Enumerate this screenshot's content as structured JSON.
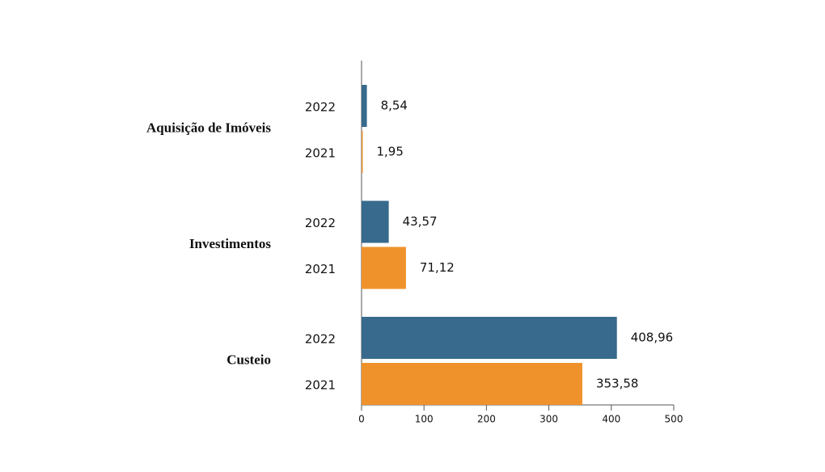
{
  "chart_data": {
    "type": "bar",
    "orientation": "horizontal",
    "categories": [
      "Aquisição de Imóveis",
      "Investimentos",
      "Custeio"
    ],
    "series": [
      {
        "name": "2022",
        "color": "#376a8c",
        "values": [
          8.54,
          43.57,
          408.96
        ],
        "value_labels": [
          "8,54",
          "43,57",
          "408,96"
        ]
      },
      {
        "name": "2021",
        "color": "#f0922b",
        "values": [
          1.95,
          71.12,
          353.58
        ],
        "value_labels": [
          "1,95",
          "71,12",
          "353,58"
        ]
      }
    ],
    "xlim": [
      0,
      500
    ],
    "xticks": [
      0,
      100,
      200,
      300,
      400,
      500
    ]
  }
}
